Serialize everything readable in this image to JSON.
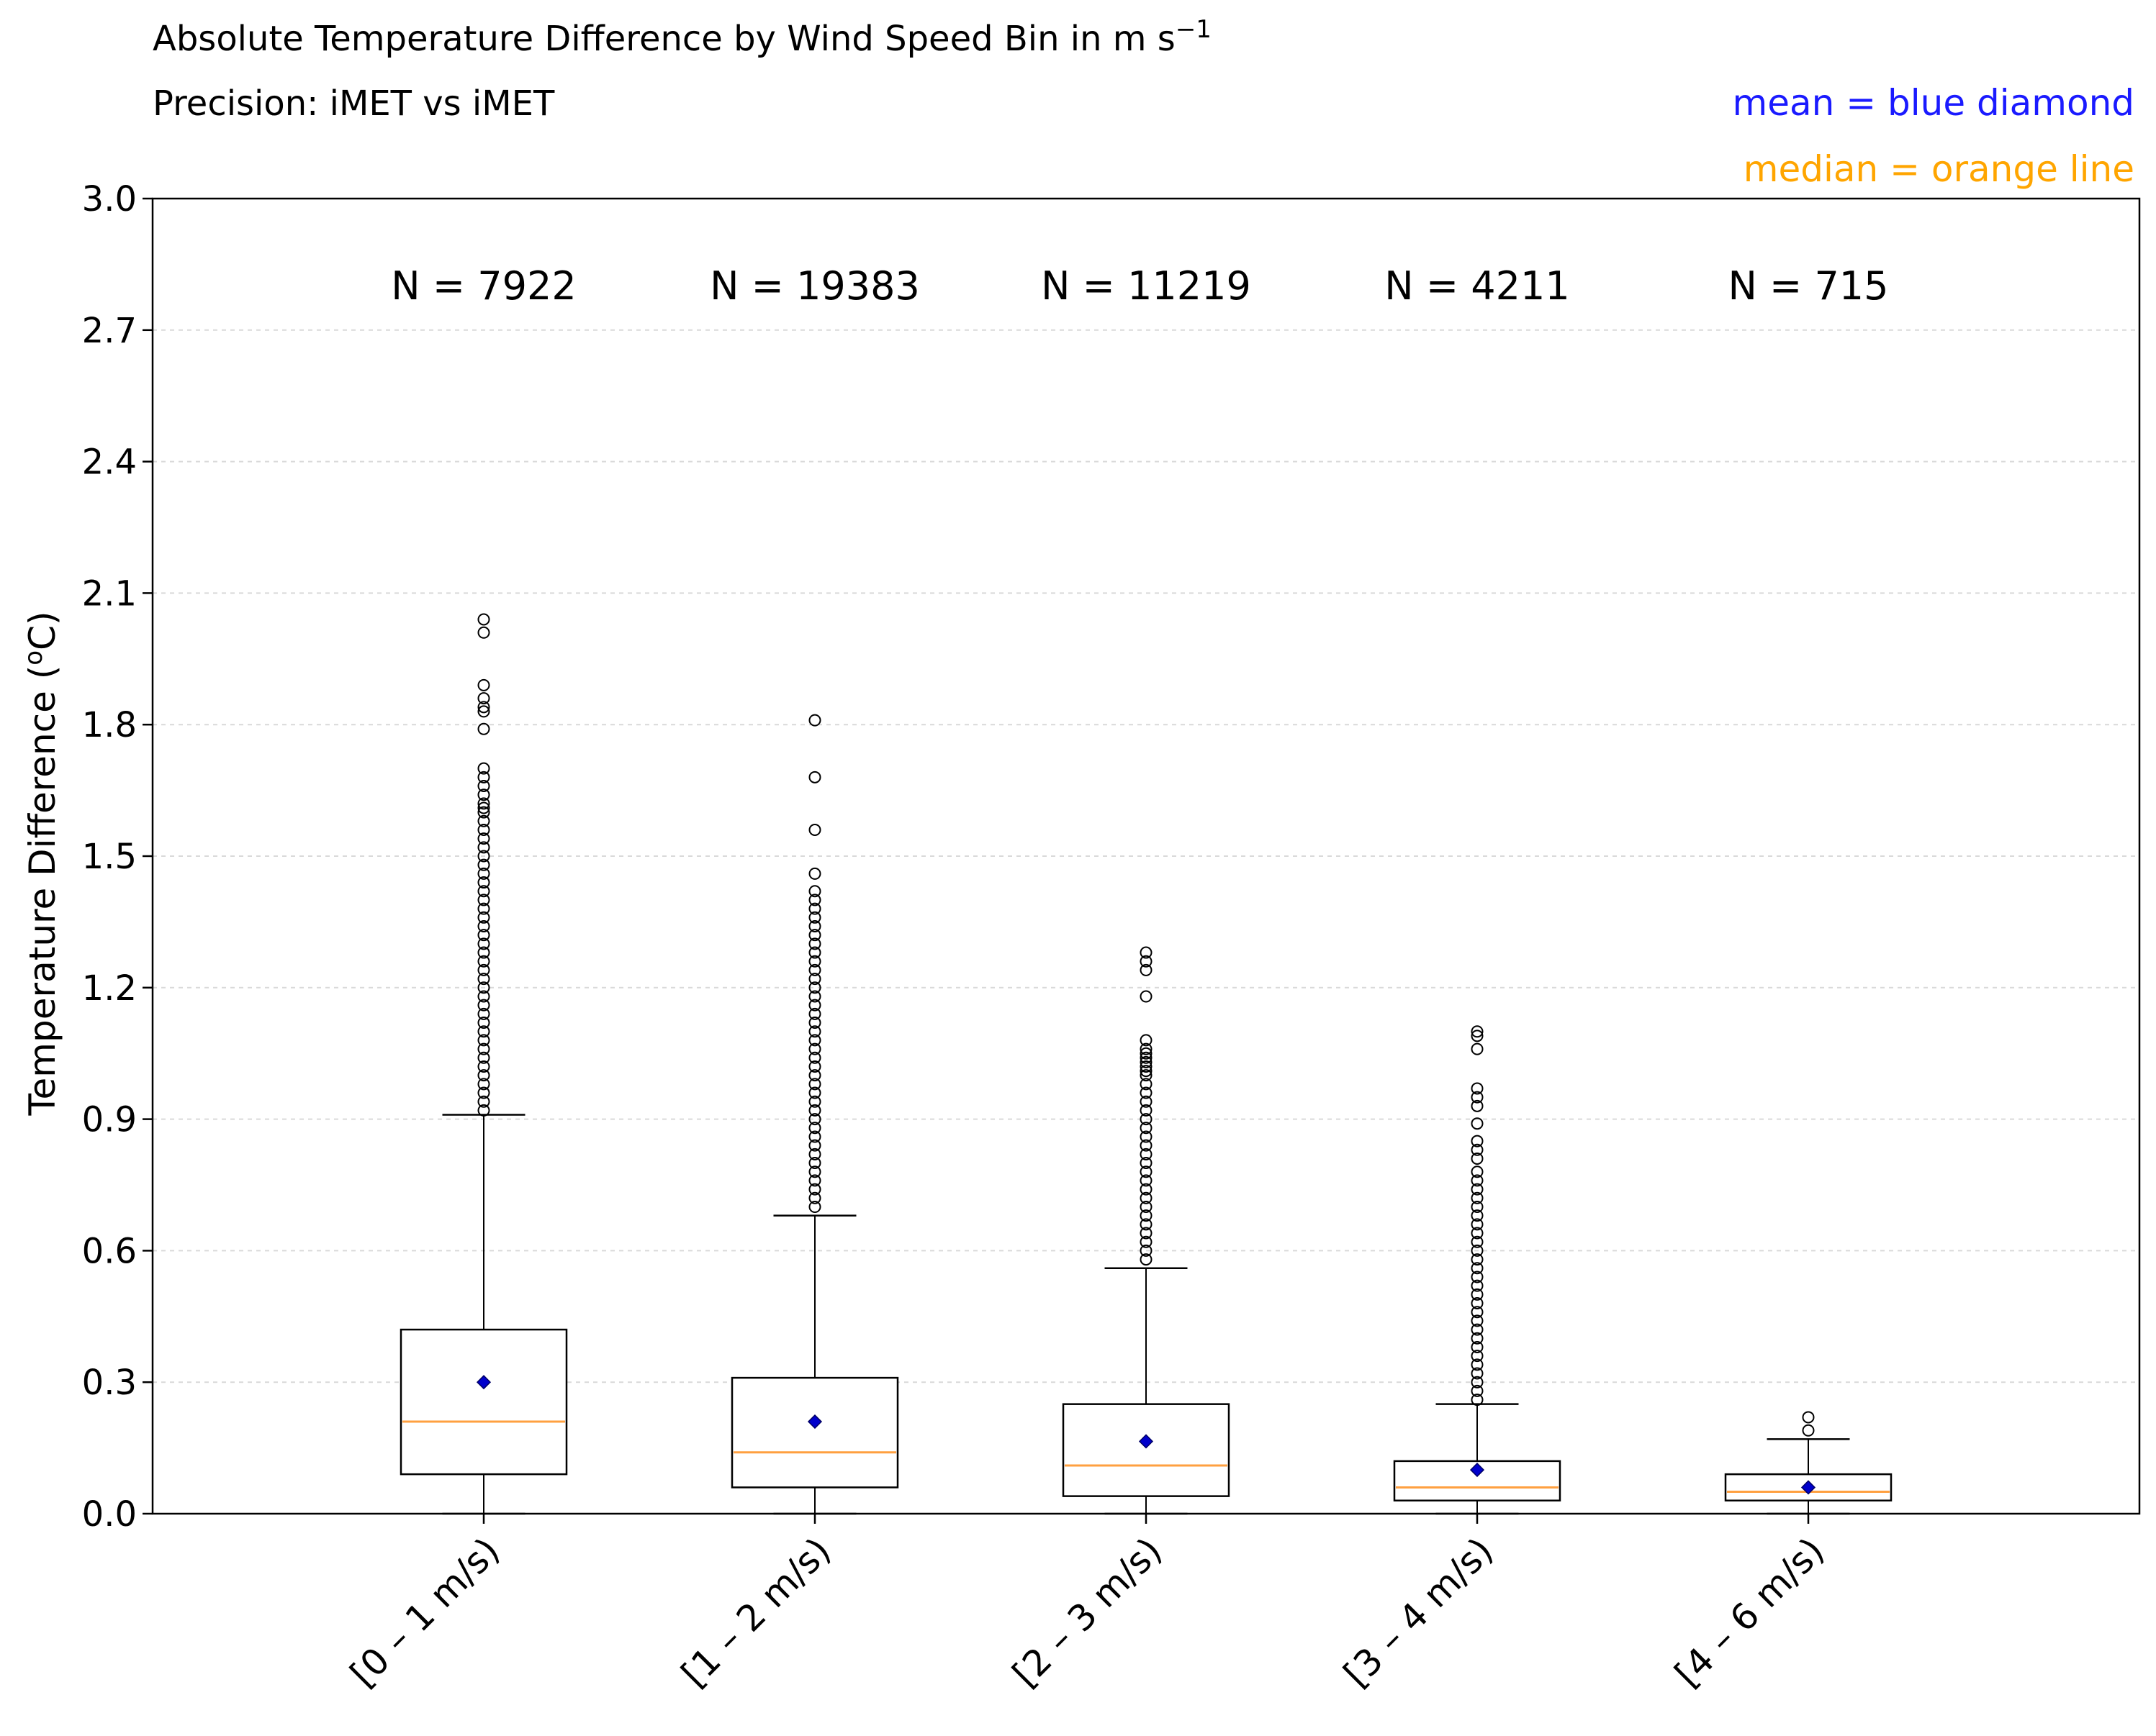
{
  "chart_data": {
    "type": "box",
    "title_line1": "Absolute Temperature Difference by Wind Speed Bin in m s",
    "title_sup": "−1",
    "title_line2": "Precision:  iMET vs iMET",
    "legend_mean": "mean = blue diamond",
    "legend_median": "median = orange line",
    "ylabel_pre": "Temperature Difference (",
    "ylabel_sup": "o",
    "ylabel_post": "C)",
    "ylim": [
      0.0,
      3.0
    ],
    "yticks": [
      "0.0",
      "0.3",
      "0.6",
      "0.9",
      "1.2",
      "1.5",
      "1.8",
      "2.1",
      "2.4",
      "2.7",
      "3.0"
    ],
    "ytick_values": [
      0.0,
      0.3,
      0.6,
      0.9,
      1.2,
      1.5,
      1.8,
      2.1,
      2.4,
      2.7,
      3.0
    ],
    "grid": "y-dashed",
    "colors": {
      "mean": "#0000cc",
      "median": "#ffa040",
      "legend_mean": "#1a1aff",
      "legend_median": "#ffa500",
      "box": "#000000",
      "grid": "#d9d9d9"
    },
    "categories": [
      "[0 – 1 m/s)",
      "[1 – 2 m/s)",
      "[2 – 3 m/s)",
      "[3 – 4 m/s)",
      "[4 – 6 m/s)"
    ],
    "counts": [
      "N = 7922",
      "N = 19383",
      "N = 11219",
      "N = 4211",
      "N = 715"
    ],
    "boxes": [
      {
        "whislo": 0.0,
        "q1": 0.09,
        "median": 0.21,
        "q3": 0.42,
        "whishi": 0.91,
        "mean": 0.3,
        "fliers": [
          2.04,
          2.01,
          1.89,
          1.86,
          1.84,
          1.83,
          1.79,
          1.7,
          1.68,
          1.66,
          1.64,
          1.62,
          1.61,
          1.6,
          1.58,
          1.56,
          1.54,
          1.52,
          1.5,
          1.48,
          1.46,
          1.44,
          1.42,
          1.4,
          1.38,
          1.36,
          1.34,
          1.32,
          1.3,
          1.28,
          1.26,
          1.24,
          1.22,
          1.2,
          1.18,
          1.16,
          1.14,
          1.12,
          1.1,
          1.08,
          1.06,
          1.04,
          1.02,
          1.0,
          0.98,
          0.96,
          0.94,
          0.92
        ]
      },
      {
        "whislo": 0.0,
        "q1": 0.06,
        "median": 0.14,
        "q3": 0.31,
        "whishi": 0.68,
        "mean": 0.21,
        "fliers": [
          1.81,
          1.68,
          1.56,
          1.46,
          1.42,
          1.4,
          1.38,
          1.36,
          1.34,
          1.32,
          1.3,
          1.28,
          1.26,
          1.24,
          1.22,
          1.2,
          1.18,
          1.16,
          1.14,
          1.12,
          1.1,
          1.08,
          1.06,
          1.04,
          1.02,
          1.0,
          0.98,
          0.96,
          0.94,
          0.92,
          0.9,
          0.88,
          0.86,
          0.84,
          0.82,
          0.8,
          0.78,
          0.76,
          0.74,
          0.72,
          0.7
        ]
      },
      {
        "whislo": 0.0,
        "q1": 0.04,
        "median": 0.11,
        "q3": 0.25,
        "whishi": 0.56,
        "mean": 0.165,
        "fliers": [
          1.28,
          1.26,
          1.24,
          1.18,
          1.08,
          1.06,
          1.05,
          1.04,
          1.03,
          1.02,
          1.01,
          1.0,
          0.98,
          0.96,
          0.94,
          0.92,
          0.9,
          0.88,
          0.86,
          0.84,
          0.82,
          0.8,
          0.78,
          0.76,
          0.74,
          0.72,
          0.7,
          0.68,
          0.66,
          0.64,
          0.62,
          0.6,
          0.58
        ]
      },
      {
        "whislo": 0.0,
        "q1": 0.03,
        "median": 0.06,
        "q3": 0.12,
        "whishi": 0.25,
        "mean": 0.1,
        "fliers": [
          1.1,
          1.09,
          1.06,
          0.97,
          0.95,
          0.93,
          0.89,
          0.85,
          0.83,
          0.81,
          0.78,
          0.76,
          0.74,
          0.72,
          0.7,
          0.68,
          0.66,
          0.64,
          0.62,
          0.6,
          0.58,
          0.56,
          0.54,
          0.52,
          0.5,
          0.48,
          0.46,
          0.44,
          0.42,
          0.4,
          0.38,
          0.36,
          0.34,
          0.32,
          0.3,
          0.28,
          0.26
        ]
      },
      {
        "whislo": 0.0,
        "q1": 0.03,
        "median": 0.05,
        "q3": 0.09,
        "whishi": 0.17,
        "mean": 0.06,
        "fliers": [
          0.22,
          0.19
        ]
      }
    ]
  }
}
